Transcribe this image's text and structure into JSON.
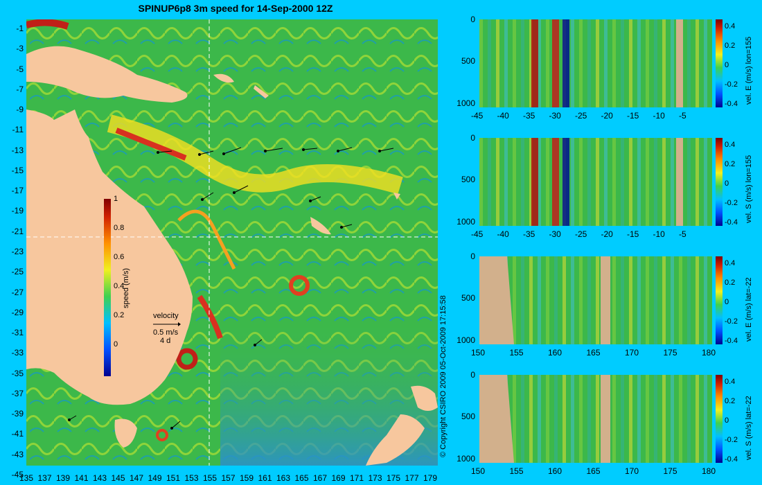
{
  "map": {
    "title": "SPINUP6p8 3m speed for 14-Sep-2000 12Z",
    "copyright": "© Copyright CSIRO 2009  05-Oct-2009 17:15:58",
    "lat_labels": [
      "-1",
      "-3",
      "-5",
      "-7",
      "-9",
      "-11",
      "-13",
      "-15",
      "-17",
      "-19",
      "-21",
      "-23",
      "-25",
      "-27",
      "-29",
      "-31",
      "-33",
      "-35",
      "-37",
      "-39",
      "-41",
      "-43",
      "-45"
    ],
    "lon_labels": [
      "135",
      "137",
      "139",
      "141",
      "143",
      "145",
      "147",
      "149",
      "151",
      "153",
      "155",
      "157",
      "159",
      "161",
      "163",
      "165",
      "167",
      "169",
      "171",
      "173",
      "175",
      "177",
      "179"
    ],
    "colorbar": {
      "title": "speed (m/s)",
      "ticks": [
        "1",
        "0.8",
        "0.6",
        "0.4",
        "0.2",
        "0"
      ]
    },
    "velocity_legend": {
      "title": "velocity",
      "scale": "0.5 m/s",
      "period": "4 d"
    },
    "colors": {
      "land": "#f7c79e",
      "ocean_bg": "#3cb84a",
      "background": "#00ccff"
    }
  },
  "sections": [
    {
      "id": "p1",
      "title": "vel. E (m/s) lon=155",
      "x_ticks": [
        "-45",
        "-40",
        "-35",
        "-30",
        "-25",
        "-20",
        "-15",
        "-10",
        "-5"
      ],
      "y_ticks": [
        "0",
        "500",
        "1000"
      ],
      "cb_ticks": [
        "0.4",
        "0.2",
        "0",
        "-0.2",
        "-0.4"
      ]
    },
    {
      "id": "p2",
      "title": "vel. S (m/s) lon=155",
      "x_ticks": [
        "-45",
        "-40",
        "-35",
        "-30",
        "-25",
        "-20",
        "-15",
        "-10",
        "-5"
      ],
      "y_ticks": [
        "0",
        "500",
        "1000"
      ],
      "cb_ticks": [
        "0.4",
        "0.2",
        "0",
        "-0.2",
        "-0.4"
      ]
    },
    {
      "id": "p3",
      "title": "vel. E (m/s) lat=-22",
      "x_ticks": [
        "150",
        "155",
        "160",
        "165",
        "170",
        "175",
        "180"
      ],
      "y_ticks": [
        "0",
        "500",
        "1000"
      ],
      "cb_ticks": [
        "0.4",
        "0.2",
        "0",
        "-0.2",
        "-0.4"
      ]
    },
    {
      "id": "p4",
      "title": "vel. S (m/s) lat=-22",
      "x_ticks": [
        "150",
        "155",
        "160",
        "165",
        "170",
        "175",
        "180"
      ],
      "y_ticks": [
        "0",
        "500",
        "1000"
      ],
      "cb_ticks": [
        "0.4",
        "0.2",
        "0",
        "-0.2",
        "-0.4"
      ]
    }
  ]
}
